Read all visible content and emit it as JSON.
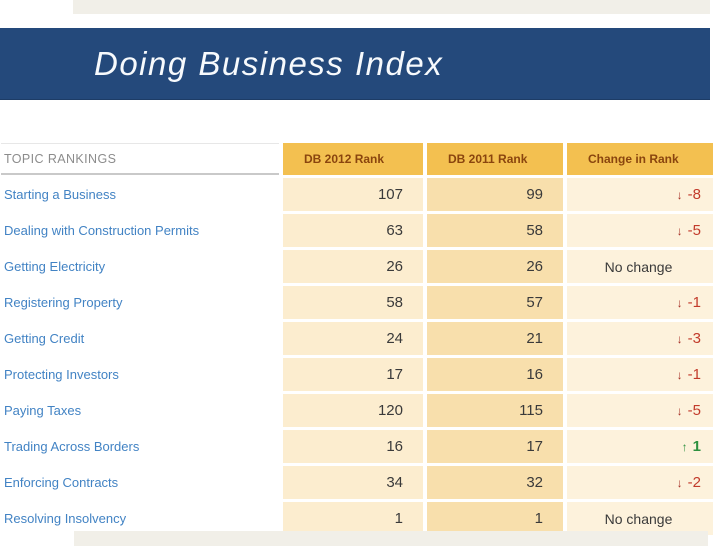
{
  "slide": {
    "title": "Doing Business Index"
  },
  "colors": {
    "banner_blue": "#24497B",
    "title_text": "#F7FAFD",
    "strip_beige": "#F1EFE8",
    "header_gold": "#F3C050",
    "header_text_brown": "#8A450E",
    "cell_cream": "#FCEDCF",
    "cell_tan": "#F8DFAC",
    "cell_cream_light": "#FDF2DC",
    "topic_link_blue": "#4283C4",
    "topic_header_gray": "#8C8C8C",
    "number_gray": "#3A3A3A",
    "negative_red": "#C23B2B",
    "arrow_red": "#A8342A",
    "positive_green": "#2E9140"
  },
  "icons": {
    "down_arrow": "↓",
    "up_arrow": "↑"
  },
  "table": {
    "topic_header": "TOPIC RANKINGS",
    "columns": [
      "DB 2012 Rank",
      "DB 2011 Rank",
      "Change in Rank"
    ],
    "rows": [
      {
        "topic": "Starting a Business",
        "db_2012": "107",
        "db_2011": "99",
        "change": "-8",
        "direction": "down"
      },
      {
        "topic": "Dealing with Construction Permits",
        "db_2012": "63",
        "db_2011": "58",
        "change": "-5",
        "direction": "down"
      },
      {
        "topic": "Getting Electricity",
        "db_2012": "26",
        "db_2011": "26",
        "change": "No change",
        "direction": "none"
      },
      {
        "topic": "Registering Property",
        "db_2012": "58",
        "db_2011": "57",
        "change": "-1",
        "direction": "down"
      },
      {
        "topic": "Getting Credit",
        "db_2012": "24",
        "db_2011": "21",
        "change": "-3",
        "direction": "down"
      },
      {
        "topic": "Protecting Investors",
        "db_2012": "17",
        "db_2011": "16",
        "change": "-1",
        "direction": "down"
      },
      {
        "topic": "Paying Taxes",
        "db_2012": "120",
        "db_2011": "115",
        "change": "-5",
        "direction": "down"
      },
      {
        "topic": "Trading Across Borders",
        "db_2012": "16",
        "db_2011": "17",
        "change": "1",
        "direction": "up"
      },
      {
        "topic": "Enforcing Contracts",
        "db_2012": "34",
        "db_2011": "32",
        "change": "-2",
        "direction": "down"
      },
      {
        "topic": "Resolving Insolvency",
        "db_2012": "1",
        "db_2011": "1",
        "change": "No change",
        "direction": "none"
      }
    ]
  }
}
